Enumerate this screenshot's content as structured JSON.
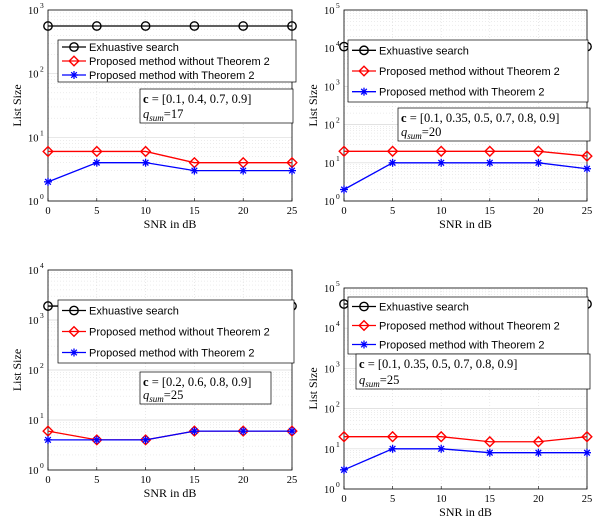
{
  "chart_data": [
    {
      "type": "line",
      "scale_y": "log",
      "ylim": [
        1,
        1000
      ],
      "xlim": [
        0,
        25
      ],
      "x": [
        0,
        5,
        10,
        15,
        20,
        25
      ],
      "xlabel": "SNR in dB",
      "ylabel": "List Size",
      "x_ticks": [
        "0",
        "5",
        "10",
        "15",
        "20",
        "25"
      ],
      "grid": true,
      "legend": "top",
      "series": [
        {
          "name": "Exhuastive search",
          "color": "#000000",
          "marker": "circle",
          "values": [
            560,
            560,
            560,
            560,
            560,
            560
          ]
        },
        {
          "name": "Proposed method without Theorem 2",
          "color": "#ff0000",
          "marker": "diamond",
          "values": [
            6,
            6,
            6,
            4,
            4,
            4
          ]
        },
        {
          "name": "Proposed method with Theorem 2",
          "color": "#0000ff",
          "marker": "star",
          "values": [
            2,
            4,
            4,
            3,
            3,
            3
          ]
        }
      ],
      "annotation": {
        "vector_label": "c",
        "vector_value": "= [0.1, 0.4, 0.7, 0.9]",
        "q_label": "q",
        "q_sub": "sum",
        "q_value": "=17"
      }
    },
    {
      "type": "line",
      "scale_y": "log",
      "ylim": [
        1,
        100000
      ],
      "xlim": [
        0,
        25
      ],
      "x": [
        0,
        5,
        10,
        15,
        20,
        25
      ],
      "xlabel": "SNR in dB",
      "ylabel": "List Size",
      "x_ticks": [
        "0",
        "5",
        "10",
        "15",
        "20",
        "25"
      ],
      "grid": true,
      "legend": "top",
      "series": [
        {
          "name": "Exhuastive search",
          "color": "#000000",
          "marker": "circle",
          "values": [
            11000,
            11000,
            11000,
            11000,
            11000,
            11000
          ]
        },
        {
          "name": "Proposed method without Theorem 2",
          "color": "#ff0000",
          "marker": "diamond",
          "values": [
            20,
            20,
            20,
            20,
            20,
            15
          ]
        },
        {
          "name": "Proposed method with Theorem 2",
          "color": "#0000ff",
          "marker": "star",
          "values": [
            2,
            10,
            10,
            10,
            10,
            7
          ]
        }
      ],
      "annotation": {
        "vector_label": "c",
        "vector_value": "= [0.1, 0.35, 0.5, 0.7, 0.8, 0.9]",
        "q_label": "q",
        "q_sub": "sum",
        "q_value": "=20"
      }
    },
    {
      "type": "line",
      "scale_y": "log",
      "ylim": [
        1,
        10000
      ],
      "xlim": [
        0,
        25
      ],
      "x": [
        0,
        5,
        10,
        15,
        20,
        25
      ],
      "xlabel": "SNR in dB",
      "ylabel": "List Size",
      "x_ticks": [
        "0",
        "5",
        "10",
        "15",
        "20",
        "25"
      ],
      "grid": true,
      "legend": "top",
      "series": [
        {
          "name": "Exhuastive search",
          "color": "#000000",
          "marker": "circle",
          "values": [
            1900,
            1900,
            1900,
            1900,
            1900,
            1900
          ]
        },
        {
          "name": "Proposed method without Theorem 2",
          "color": "#ff0000",
          "marker": "diamond",
          "values": [
            6,
            4,
            4,
            6,
            6,
            6
          ]
        },
        {
          "name": "Proposed method with Theorem 2",
          "color": "#0000ff",
          "marker": "star",
          "values": [
            4,
            4,
            4,
            6,
            6,
            6
          ]
        }
      ],
      "annotation": {
        "vector_label": "c",
        "vector_value": "= [0.2, 0.6, 0.8, 0.9]",
        "q_label": "q",
        "q_sub": "sum",
        "q_value": "=25"
      }
    },
    {
      "type": "line",
      "scale_y": "log",
      "ylim": [
        1,
        100000
      ],
      "xlim": [
        0,
        25
      ],
      "x": [
        0,
        5,
        10,
        15,
        20,
        25
      ],
      "xlabel": "SNR in dB",
      "ylabel": "List Size",
      "x_ticks": [
        "0",
        "5",
        "10",
        "15",
        "20",
        "25"
      ],
      "grid": true,
      "legend": "top",
      "series": [
        {
          "name": "Exhuastive search",
          "color": "#000000",
          "marker": "circle",
          "values": [
            40000,
            40000,
            40000,
            40000,
            40000,
            40000
          ]
        },
        {
          "name": "Proposed method without Theorem 2",
          "color": "#ff0000",
          "marker": "diamond",
          "values": [
            20,
            20,
            20,
            15,
            15,
            20
          ]
        },
        {
          "name": "Proposed method with Theorem 2",
          "color": "#0000ff",
          "marker": "star",
          "values": [
            3,
            10,
            10,
            8,
            8,
            8
          ]
        }
      ],
      "annotation": {
        "vector_label": "c",
        "vector_value": "= [0.1, 0.35, 0.5, 0.7, 0.8, 0.9]",
        "q_label": "q",
        "q_sub": "sum",
        "q_value": "=25"
      }
    }
  ]
}
